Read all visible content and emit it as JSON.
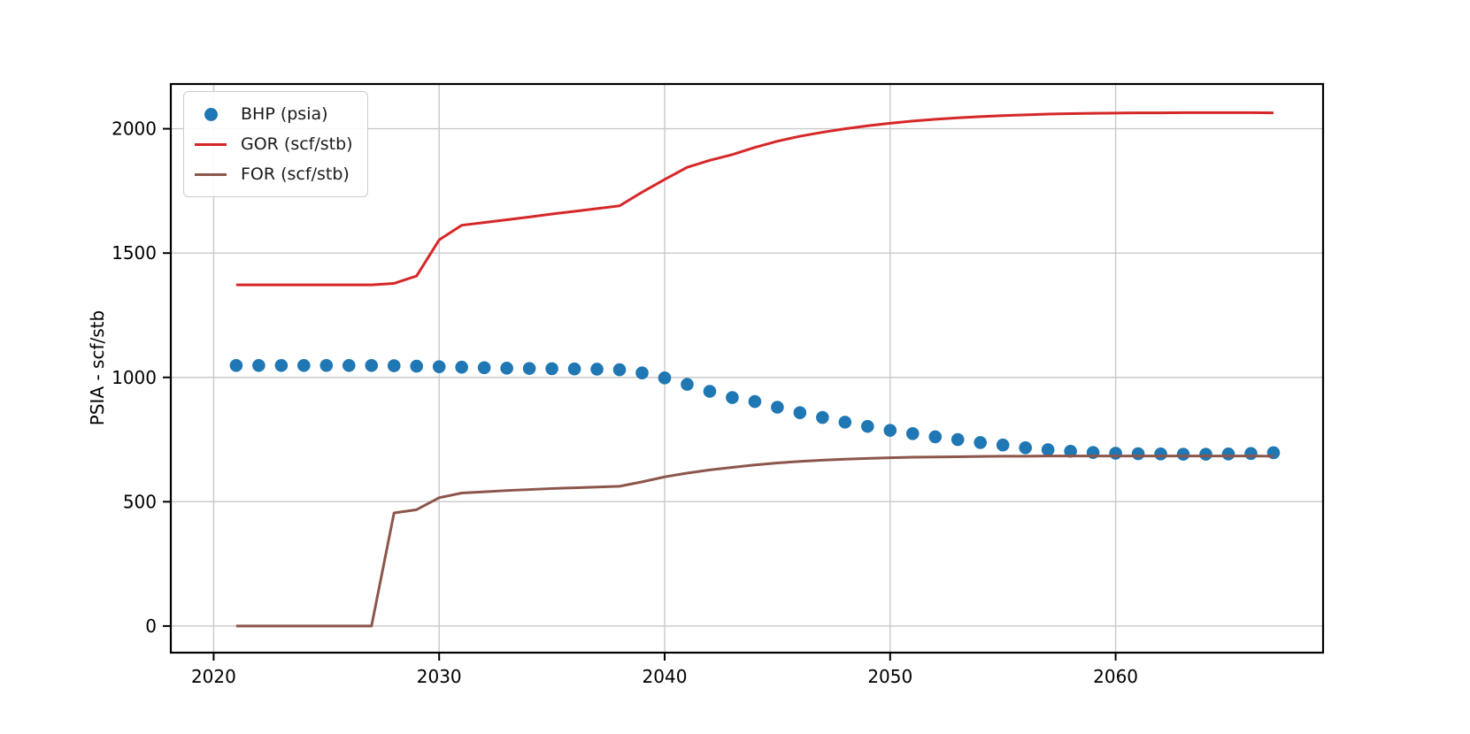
{
  "figure": {
    "background": "#ffffff",
    "plot_border_color": "#000000",
    "grid_color": "#c9c9c9"
  },
  "chart_data": {
    "type": "line",
    "title": "",
    "xlabel": "",
    "ylabel": "PSIA - scf/stb",
    "grid": true,
    "legend_position": "upper left",
    "xticks": [
      2020,
      2030,
      2040,
      2050,
      2060
    ],
    "yticks": [
      0,
      500,
      1000,
      1500,
      2000
    ],
    "xlim": [
      2018.1,
      2069.2
    ],
    "ylim": [
      -107,
      2180
    ],
    "x": [
      2021,
      2022,
      2023,
      2024,
      2025,
      2026,
      2027,
      2028,
      2029,
      2030,
      2031,
      2032,
      2033,
      2034,
      2035,
      2036,
      2037,
      2038,
      2039,
      2040,
      2041,
      2042,
      2043,
      2044,
      2045,
      2046,
      2047,
      2048,
      2049,
      2050,
      2051,
      2052,
      2053,
      2054,
      2055,
      2056,
      2057,
      2058,
      2059,
      2060,
      2061,
      2062,
      2063,
      2064,
      2065,
      2066,
      2067
    ],
    "series": [
      {
        "name": "BHP (psia)",
        "style": "scatter",
        "color": "#1f77b4",
        "values": [
          1048,
          1048,
          1048,
          1048,
          1048,
          1048,
          1048,
          1047,
          1045,
          1043,
          1041,
          1039,
          1037,
          1036,
          1035,
          1034,
          1033,
          1031,
          1018,
          998,
          972,
          944,
          919,
          903,
          880,
          858,
          839,
          820,
          803,
          787,
          774,
          761,
          750,
          738,
          728,
          717,
          709,
          703,
          698,
          695,
          693,
          692,
          691,
          691,
          692,
          694,
          697
        ]
      },
      {
        "name": "GOR (scf/stb)",
        "style": "line",
        "color": "#d62728",
        "values": [
          1372,
          1372,
          1372,
          1372,
          1372,
          1372,
          1372,
          1378,
          1408,
          1553,
          1612,
          1623,
          1634,
          1645,
          1657,
          1668,
          1679,
          1690,
          1745,
          1796,
          1845,
          1873,
          1896,
          1925,
          1950,
          1970,
          1986,
          2000,
          2012,
          2022,
          2031,
          2038,
          2044,
          2049,
          2053,
          2056,
          2059,
          2061,
          2062,
          2063,
          2064,
          2064,
          2065,
          2065,
          2065,
          2065,
          2064
        ]
      },
      {
        "name": "FOR (scf/stb)",
        "style": "line",
        "color": "#8c564b",
        "values": [
          0,
          0,
          0,
          0,
          0,
          0,
          0,
          455,
          468,
          516,
          535,
          540,
          545,
          549,
          553,
          556,
          559,
          562,
          580,
          600,
          615,
          628,
          638,
          648,
          656,
          662,
          667,
          671,
          674,
          677,
          679,
          680,
          681,
          682,
          683,
          683,
          684,
          684,
          684,
          684,
          684,
          684,
          684,
          684,
          684,
          684,
          683
        ]
      }
    ]
  }
}
